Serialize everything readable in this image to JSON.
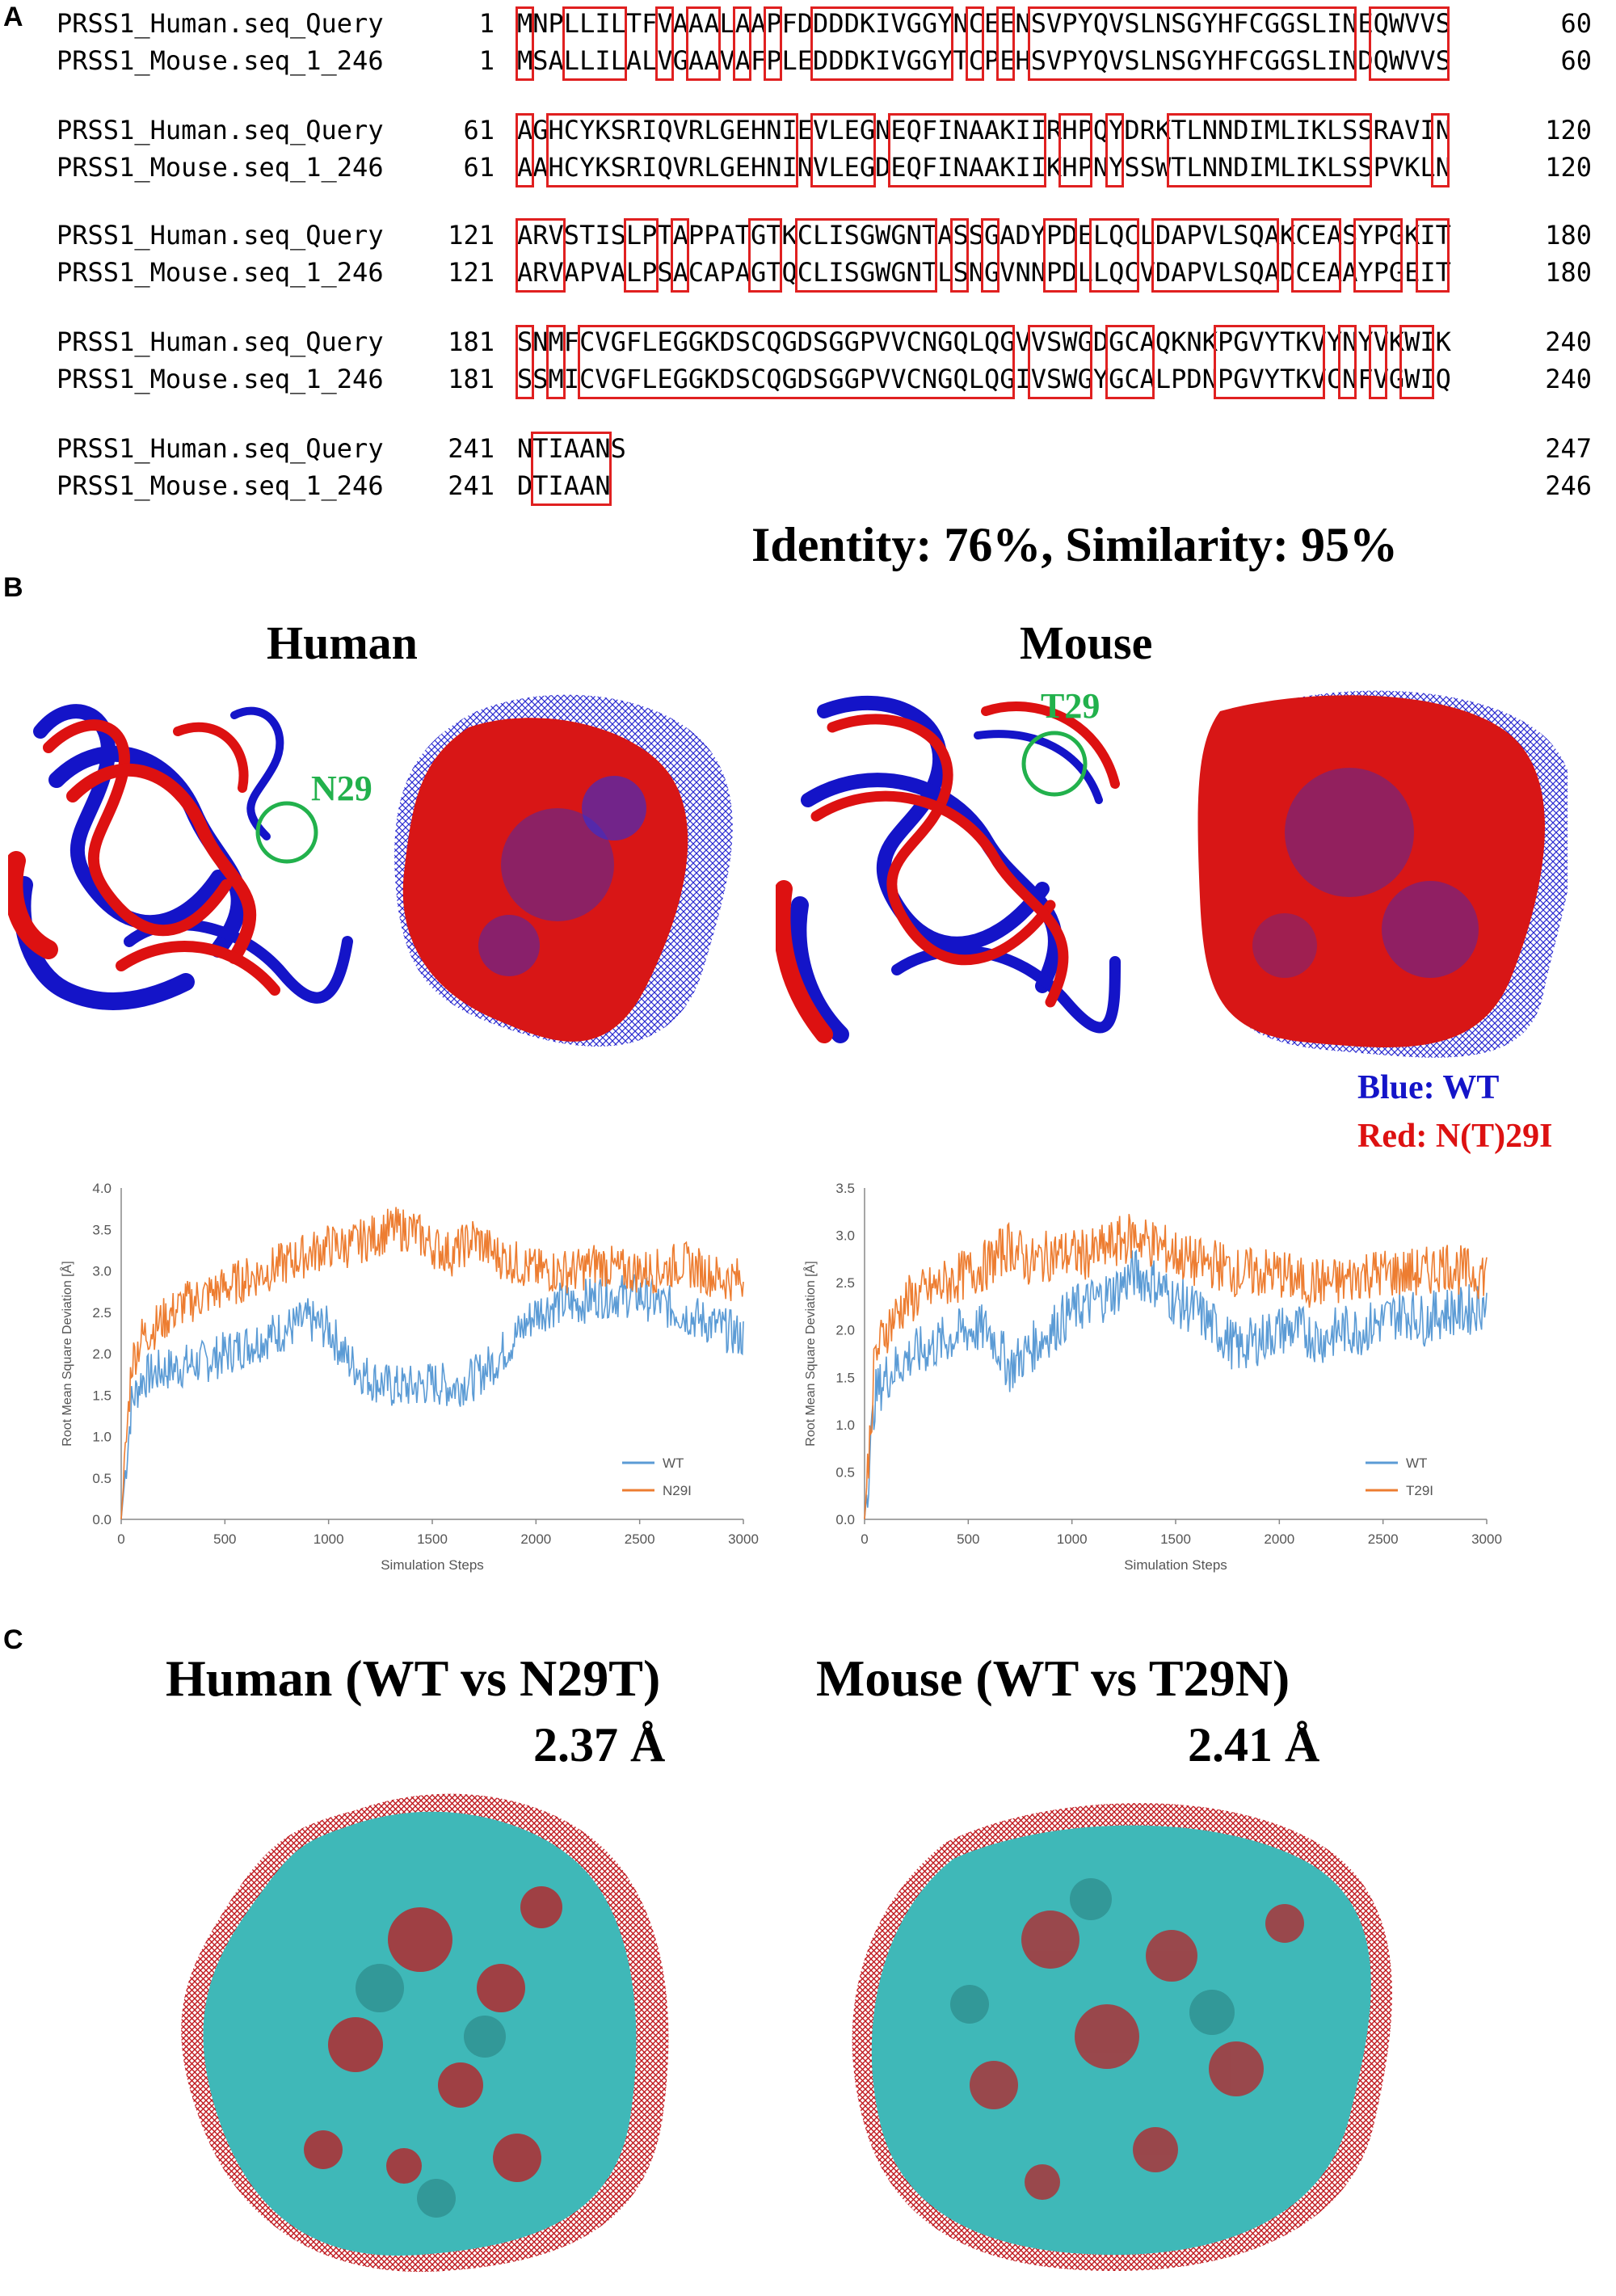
{
  "panels": {
    "a": "A",
    "b": "B",
    "c": "C"
  },
  "alignment": {
    "blocks": [
      {
        "human": {
          "name": "PRSS1_Human.seq_Query",
          "start": "1",
          "seq": "MNPLLILTFVAAALAAPFDDDDKIVGGYNCEENSVPYQVSLNSGYHFCGGSLINEQWVVS",
          "end": "60"
        },
        "mouse": {
          "name": "PRSS1_Mouse.seq_1_246",
          "start": "1",
          "seq": "MSALLILALVGAAVAFPLEDDDKIVGGYTCPEHSVPYQVSLNSGYHFCGGSLINDQWVVS",
          "end": "60"
        }
      },
      {
        "human": {
          "name": "PRSS1_Human.seq_Query",
          "start": "61",
          "seq": "AGHCYKSRIQVRLGEHNIEVLEGNEQFINAAKIIRHPQYDRKTLNNDIMLIKLSSRAVIN",
          "end": "120"
        },
        "mouse": {
          "name": "PRSS1_Mouse.seq_1_246",
          "start": "61",
          "seq": "AAHCYKSRIQVRLGEHNINVLEGDEQFINAAKIIKHPNYSSWTLNNDIMLIKLSSPVKLN",
          "end": "120"
        }
      },
      {
        "human": {
          "name": "PRSS1_Human.seq_Query",
          "start": "121",
          "seq": "ARVSTISLPTAPPATGTKCLISGWGNTASSGADYPDELQCLDAPVLSQAKCEASYPGKIT",
          "end": "180"
        },
        "mouse": {
          "name": "PRSS1_Mouse.seq_1_246",
          "start": "121",
          "seq": "ARVAPVALPSACAPAGTQCLISGWGNTLSNGVNNPDLLQCVDAPVLSQADCEAAYPGEIT",
          "end": "180"
        }
      },
      {
        "human": {
          "name": "PRSS1_Human.seq_Query",
          "start": "181",
          "seq": "SNMFCVGFLEGGKDSCQGDSGGPVVCNGQLQGVVSWGDGCAQKNKPGVYTKVYNYVKWIK",
          "end": "240"
        },
        "mouse": {
          "name": "PRSS1_Mouse.seq_1_246",
          "start": "181",
          "seq": "SSMICVGFLEGGKDSCQGDSGGPVVCNGQLQGIVSWGYGCALPDNPGVYTKVCNFVGWIQ",
          "end": "240"
        }
      },
      {
        "human": {
          "name": "PRSS1_Human.seq_Query",
          "start": "241",
          "seq": "NTIAANS",
          "end": "247"
        },
        "mouse": {
          "name": "PRSS1_Mouse.seq_1_246",
          "start": "241",
          "seq": "DTIAAN",
          "end": "246"
        }
      }
    ],
    "summary": "Identity: 76%, Similarity: 95%"
  },
  "structures": {
    "human_title": "Human",
    "mouse_title": "Mouse",
    "human_residue": "N29",
    "mouse_residue": "T29",
    "legend_blue": "Blue: WT",
    "legend_red": "Red: N(T)29I",
    "colors": {
      "wt": "#1414c8",
      "mutant": "#dd1111",
      "circle": "#22b14c"
    }
  },
  "charts_text": {
    "xlabel": "Simulation Steps",
    "ylabel": "Root Mean Square Deviation [Å]"
  },
  "chart_data": [
    {
      "type": "line",
      "xlabel": "Simulation Steps",
      "ylabel": "Root Mean Square Deviation [Å]",
      "xlim": [
        0,
        3000
      ],
      "ylim": [
        0,
        4.0
      ],
      "xticks": [
        0,
        500,
        1000,
        1500,
        2000,
        2500,
        3000
      ],
      "yticks": [
        0.0,
        0.5,
        1.0,
        1.5,
        2.0,
        2.5,
        3.0,
        3.5,
        4.0
      ],
      "legend_position": "bottom-right",
      "series": [
        {
          "name": "WT",
          "color": "#5b9bd5",
          "x": [
            0,
            50,
            100,
            200,
            300,
            400,
            500,
            600,
            700,
            800,
            900,
            1000,
            1100,
            1200,
            1300,
            1400,
            1500,
            1600,
            1700,
            1800,
            1900,
            2000,
            2100,
            2200,
            2300,
            2400,
            2500,
            2600,
            2700,
            2800,
            2900,
            3000
          ],
          "y": [
            0.0,
            1.4,
            1.7,
            1.8,
            1.85,
            1.9,
            2.0,
            2.1,
            2.2,
            2.3,
            2.4,
            2.3,
            1.9,
            1.7,
            1.6,
            1.6,
            1.65,
            1.6,
            1.7,
            1.9,
            2.2,
            2.5,
            2.6,
            2.6,
            2.7,
            2.7,
            2.7,
            2.6,
            2.5,
            2.4,
            2.3,
            2.2
          ]
        },
        {
          "name": "N29I",
          "color": "#ed7d31",
          "x": [
            0,
            50,
            100,
            200,
            300,
            400,
            500,
            600,
            700,
            800,
            900,
            1000,
            1100,
            1200,
            1300,
            1400,
            1500,
            1600,
            1700,
            1800,
            1900,
            2000,
            2100,
            2200,
            2300,
            2400,
            2500,
            2600,
            2700,
            2800,
            2900,
            3000
          ],
          "y": [
            0.0,
            1.9,
            2.2,
            2.4,
            2.6,
            2.7,
            2.8,
            2.9,
            3.0,
            3.1,
            3.2,
            3.3,
            3.3,
            3.4,
            3.5,
            3.5,
            3.3,
            3.2,
            3.4,
            3.2,
            3.1,
            3.0,
            3.0,
            3.0,
            3.1,
            3.0,
            3.0,
            3.0,
            3.1,
            3.0,
            2.9,
            2.9
          ]
        }
      ]
    },
    {
      "type": "line",
      "xlabel": "Simulation Steps",
      "ylabel": "Root Mean Square Deviation [Å]",
      "xlim": [
        0,
        3000
      ],
      "ylim": [
        0,
        3.5
      ],
      "xticks": [
        0,
        500,
        1000,
        1500,
        2000,
        2500,
        3000
      ],
      "yticks": [
        0.0,
        0.5,
        1.0,
        1.5,
        2.0,
        2.5,
        3.0,
        3.5
      ],
      "legend_position": "bottom-right",
      "series": [
        {
          "name": "WT",
          "color": "#5b9bd5",
          "x": [
            0,
            50,
            100,
            200,
            300,
            400,
            500,
            600,
            700,
            800,
            900,
            1000,
            1100,
            1200,
            1300,
            1400,
            1500,
            1600,
            1700,
            1800,
            1900,
            2000,
            2100,
            2200,
            2300,
            2400,
            2500,
            2600,
            2700,
            2800,
            2900,
            3000
          ],
          "y": [
            0.0,
            1.3,
            1.5,
            1.7,
            1.8,
            1.9,
            2.0,
            2.0,
            1.6,
            1.8,
            2.0,
            2.2,
            2.3,
            2.4,
            2.6,
            2.5,
            2.3,
            2.2,
            2.0,
            1.8,
            1.9,
            2.0,
            2.0,
            1.9,
            2.0,
            2.0,
            2.1,
            2.2,
            2.1,
            2.2,
            2.2,
            2.3
          ]
        },
        {
          "name": "T29I",
          "color": "#ed7d31",
          "x": [
            0,
            50,
            100,
            200,
            300,
            400,
            500,
            600,
            700,
            800,
            900,
            1000,
            1100,
            1200,
            1300,
            1400,
            1500,
            1600,
            1700,
            1800,
            1900,
            2000,
            2100,
            2200,
            2300,
            2400,
            2500,
            2600,
            2700,
            2800,
            2900,
            3000
          ],
          "y": [
            0.0,
            1.7,
            2.0,
            2.3,
            2.4,
            2.5,
            2.6,
            2.7,
            2.9,
            2.7,
            2.8,
            2.8,
            2.8,
            2.9,
            3.0,
            2.9,
            2.8,
            2.7,
            2.7,
            2.6,
            2.6,
            2.6,
            2.5,
            2.5,
            2.5,
            2.6,
            2.6,
            2.6,
            2.6,
            2.7,
            2.6,
            2.6
          ]
        }
      ]
    }
  ],
  "comparison": {
    "human_title": "Human (WT vs N29T)",
    "human_rmsd": "2.37 Å",
    "mouse_title": "Mouse (WT vs T29N)",
    "mouse_rmsd": "2.41 Å",
    "colors": {
      "surface": "#3fb8b8",
      "mesh": "#c0181e"
    }
  }
}
